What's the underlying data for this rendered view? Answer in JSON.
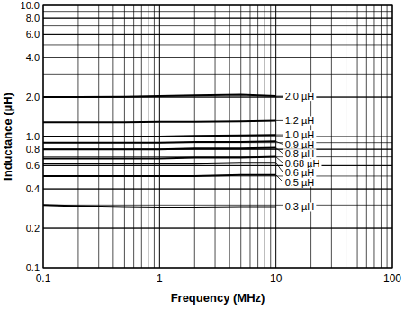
{
  "chart_data": {
    "type": "line",
    "x_label": "Frequency (MHz)",
    "y_label": "Inductance (µH)",
    "log": true,
    "grid": true,
    "xlim": [
      0.1,
      100
    ],
    "xticks": [
      0.1,
      1,
      10,
      100
    ],
    "ylim": [
      0.1,
      10
    ],
    "yticks": [
      0.1,
      0.2,
      0.4,
      0.6,
      0.8,
      {
        "value": 1,
        "label": "1.0"
      },
      {
        "value": 2,
        "label": "2.0"
      },
      {
        "value": 4,
        "label": "4.0"
      },
      {
        "value": 6,
        "label": "6.0"
      },
      {
        "value": 8,
        "label": "8.0"
      },
      {
        "value": 10,
        "label": "10.0"
      }
    ],
    "x": [
      0.1,
      0.2,
      0.5,
      1,
      2,
      5,
      10
    ],
    "series": [
      {
        "name": "2.0 µH",
        "color": "#000000",
        "values": [
          2.0,
          2.0,
          2.01,
          2.03,
          2.06,
          2.08,
          2.03
        ]
      },
      {
        "name": "1.2 µH",
        "color": "#000000",
        "values": [
          1.28,
          1.28,
          1.28,
          1.29,
          1.29,
          1.3,
          1.32
        ]
      },
      {
        "name": "1.0 µH",
        "color": "#000000",
        "values": [
          1.0,
          1.0,
          1.0,
          1.0,
          1.01,
          1.02,
          1.03
        ]
      },
      {
        "name": "0.9 µH",
        "color": "#000000",
        "values": [
          0.9,
          0.9,
          0.9,
          0.9,
          0.91,
          0.91,
          0.92
        ]
      },
      {
        "name": "0.8 µH",
        "color": "#000000",
        "values": [
          0.8,
          0.8,
          0.8,
          0.8,
          0.81,
          0.81,
          0.82
        ]
      },
      {
        "name": "0.68 µH",
        "color": "#000000",
        "values": [
          0.68,
          0.68,
          0.68,
          0.68,
          0.69,
          0.69,
          0.7
        ]
      },
      {
        "name": "0.6 µH",
        "color": "#000000",
        "values": [
          0.62,
          0.62,
          0.62,
          0.62,
          0.62,
          0.63,
          0.63
        ]
      },
      {
        "name": "0.5 µH",
        "color": "#000000",
        "values": [
          0.5,
          0.5,
          0.5,
          0.5,
          0.5,
          0.51,
          0.51
        ]
      },
      {
        "name": "0.3 µH",
        "color": "#000000",
        "values": [
          0.3,
          0.295,
          0.29,
          0.288,
          0.288,
          0.29,
          0.29
        ]
      }
    ]
  }
}
